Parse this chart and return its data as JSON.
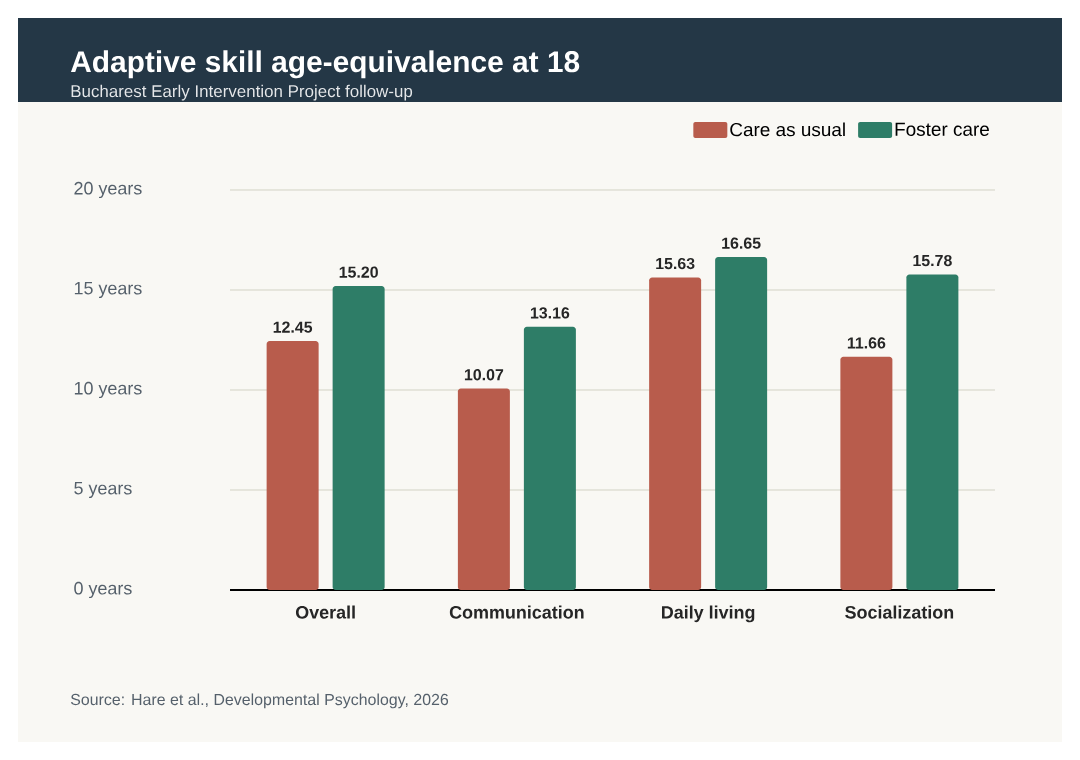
{
  "chart_data": {
    "type": "bar",
    "title": "Adaptive skill age-equivalence at 18",
    "subtitle": "Bucharest Early Intervention Project follow-up",
    "categories": [
      "Overall",
      "Communication",
      "Daily living",
      "Socialization"
    ],
    "series": [
      {
        "name": "Care as usual",
        "color": "#b85c4c",
        "values": [
          12.45,
          10.07,
          15.63,
          11.66
        ],
        "value_labels": [
          "12.45",
          "10.07",
          "15.63",
          "11.66"
        ]
      },
      {
        "name": "Foster care",
        "color": "#2e7d67",
        "values": [
          15.2,
          13.16,
          16.65,
          15.78
        ],
        "value_labels": [
          "15.20",
          "13.16",
          "16.65",
          "15.78"
        ]
      }
    ],
    "ylim": [
      0,
      20
    ],
    "yticks": [
      {
        "value": 0,
        "label": "0 years"
      },
      {
        "value": 5,
        "label": "5 years"
      },
      {
        "value": 10,
        "label": "10 years"
      },
      {
        "value": 15,
        "label": "15 years"
      },
      {
        "value": 20,
        "label": "20 years"
      }
    ],
    "grid": "y",
    "legend": "top right",
    "annotations": [
      "Source: Hare et al., Developmental Psychology, 2026"
    ]
  }
}
